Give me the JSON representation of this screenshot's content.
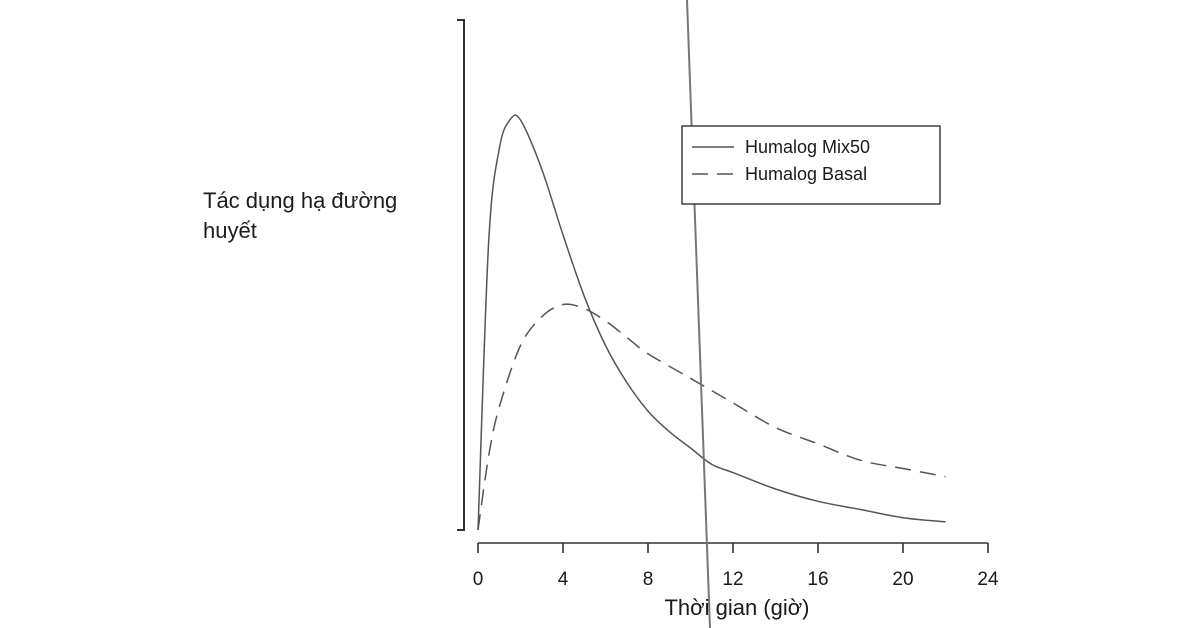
{
  "chart_data": {
    "type": "line",
    "title": "",
    "xlabel": "Thời gian (giờ)",
    "ylabel_lines": [
      "Tác dụng hạ đường",
      "huyết"
    ],
    "xlim": [
      0,
      24
    ],
    "x_ticks": [
      0,
      4,
      8,
      12,
      16,
      20,
      24
    ],
    "x_tick_labels": [
      "0",
      "4",
      "8",
      "12",
      "16",
      "20",
      "24"
    ],
    "ylim": [
      0,
      100
    ],
    "grid": false,
    "legend_position": "top-right",
    "series": [
      {
        "name": "Humalog Mix50",
        "style": "solid",
        "x": [
          0,
          0.5,
          1,
          1.5,
          2,
          3,
          4,
          5,
          6,
          7,
          8,
          9,
          10,
          11,
          12,
          14,
          16,
          18,
          20,
          22
        ],
        "y": [
          0,
          70,
          93,
          100,
          100,
          88,
          72,
          57,
          45,
          36,
          29,
          24,
          20,
          16,
          14,
          10,
          7,
          5,
          3,
          2
        ]
      },
      {
        "name": "Humalog Basal",
        "style": "dashed",
        "x": [
          0,
          0.5,
          1,
          2,
          3,
          4,
          5,
          6,
          7,
          8,
          10,
          12,
          14,
          16,
          18,
          20,
          22
        ],
        "y": [
          0,
          18,
          30,
          45,
          52,
          55,
          54,
          51,
          47,
          43,
          37,
          31,
          25,
          21,
          17,
          15,
          13
        ]
      }
    ],
    "colors": {
      "line": "#555555",
      "axis": "#333333",
      "text": "#1a1a1a"
    }
  }
}
